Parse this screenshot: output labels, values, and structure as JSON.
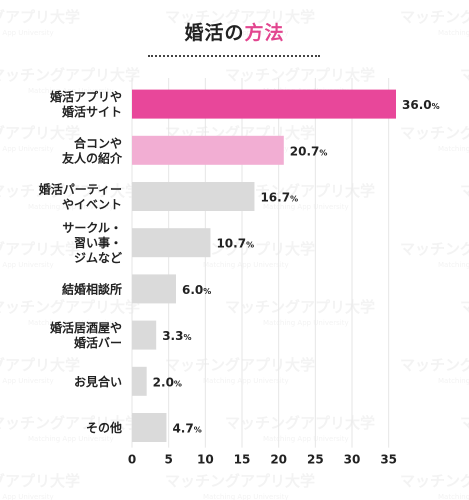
{
  "chart_data": {
    "type": "bar",
    "orientation": "horizontal",
    "title": "婚活の方法",
    "title_parts": {
      "main": "婚活の",
      "accent": "方法"
    },
    "categories": [
      [
        "婚活アプリや",
        "婚活サイト"
      ],
      [
        "合コンや",
        "友人の紹介"
      ],
      [
        "婚活パーティー",
        "やイベント"
      ],
      [
        "サークル・",
        "習い事・",
        "ジムなど"
      ],
      [
        "結婚相談所"
      ],
      [
        "婚活居酒屋や",
        "婚活バー"
      ],
      [
        "お見合い"
      ],
      [
        "その他"
      ]
    ],
    "values": [
      36.0,
      20.7,
      16.7,
      10.7,
      6.0,
      3.3,
      2.0,
      4.7
    ],
    "value_labels": [
      "36.0",
      "20.7",
      "16.7",
      "10.7",
      "6.0",
      "3.3",
      "2.0",
      "4.7"
    ],
    "unit": "%",
    "xlim": [
      0,
      36
    ],
    "xticks": [
      0,
      5,
      10,
      15,
      20,
      25,
      30,
      35
    ],
    "xlabel": "",
    "ylabel": "",
    "grid": "vertical",
    "legend": "none",
    "colors": {
      "highlight1": "#e8479a",
      "highlight2": "#f2aed3",
      "default": "#dadada",
      "grid": "#e6e6e6",
      "text": "#222222",
      "title_accent": "#e2458f",
      "watermark": "#f3f3f3"
    },
    "bar_colors": [
      "highlight1",
      "highlight2",
      "default",
      "default",
      "default",
      "default",
      "default",
      "default"
    ]
  },
  "watermark": {
    "text": "マッチングアプリ大学",
    "subtext": "Matching App University"
  }
}
